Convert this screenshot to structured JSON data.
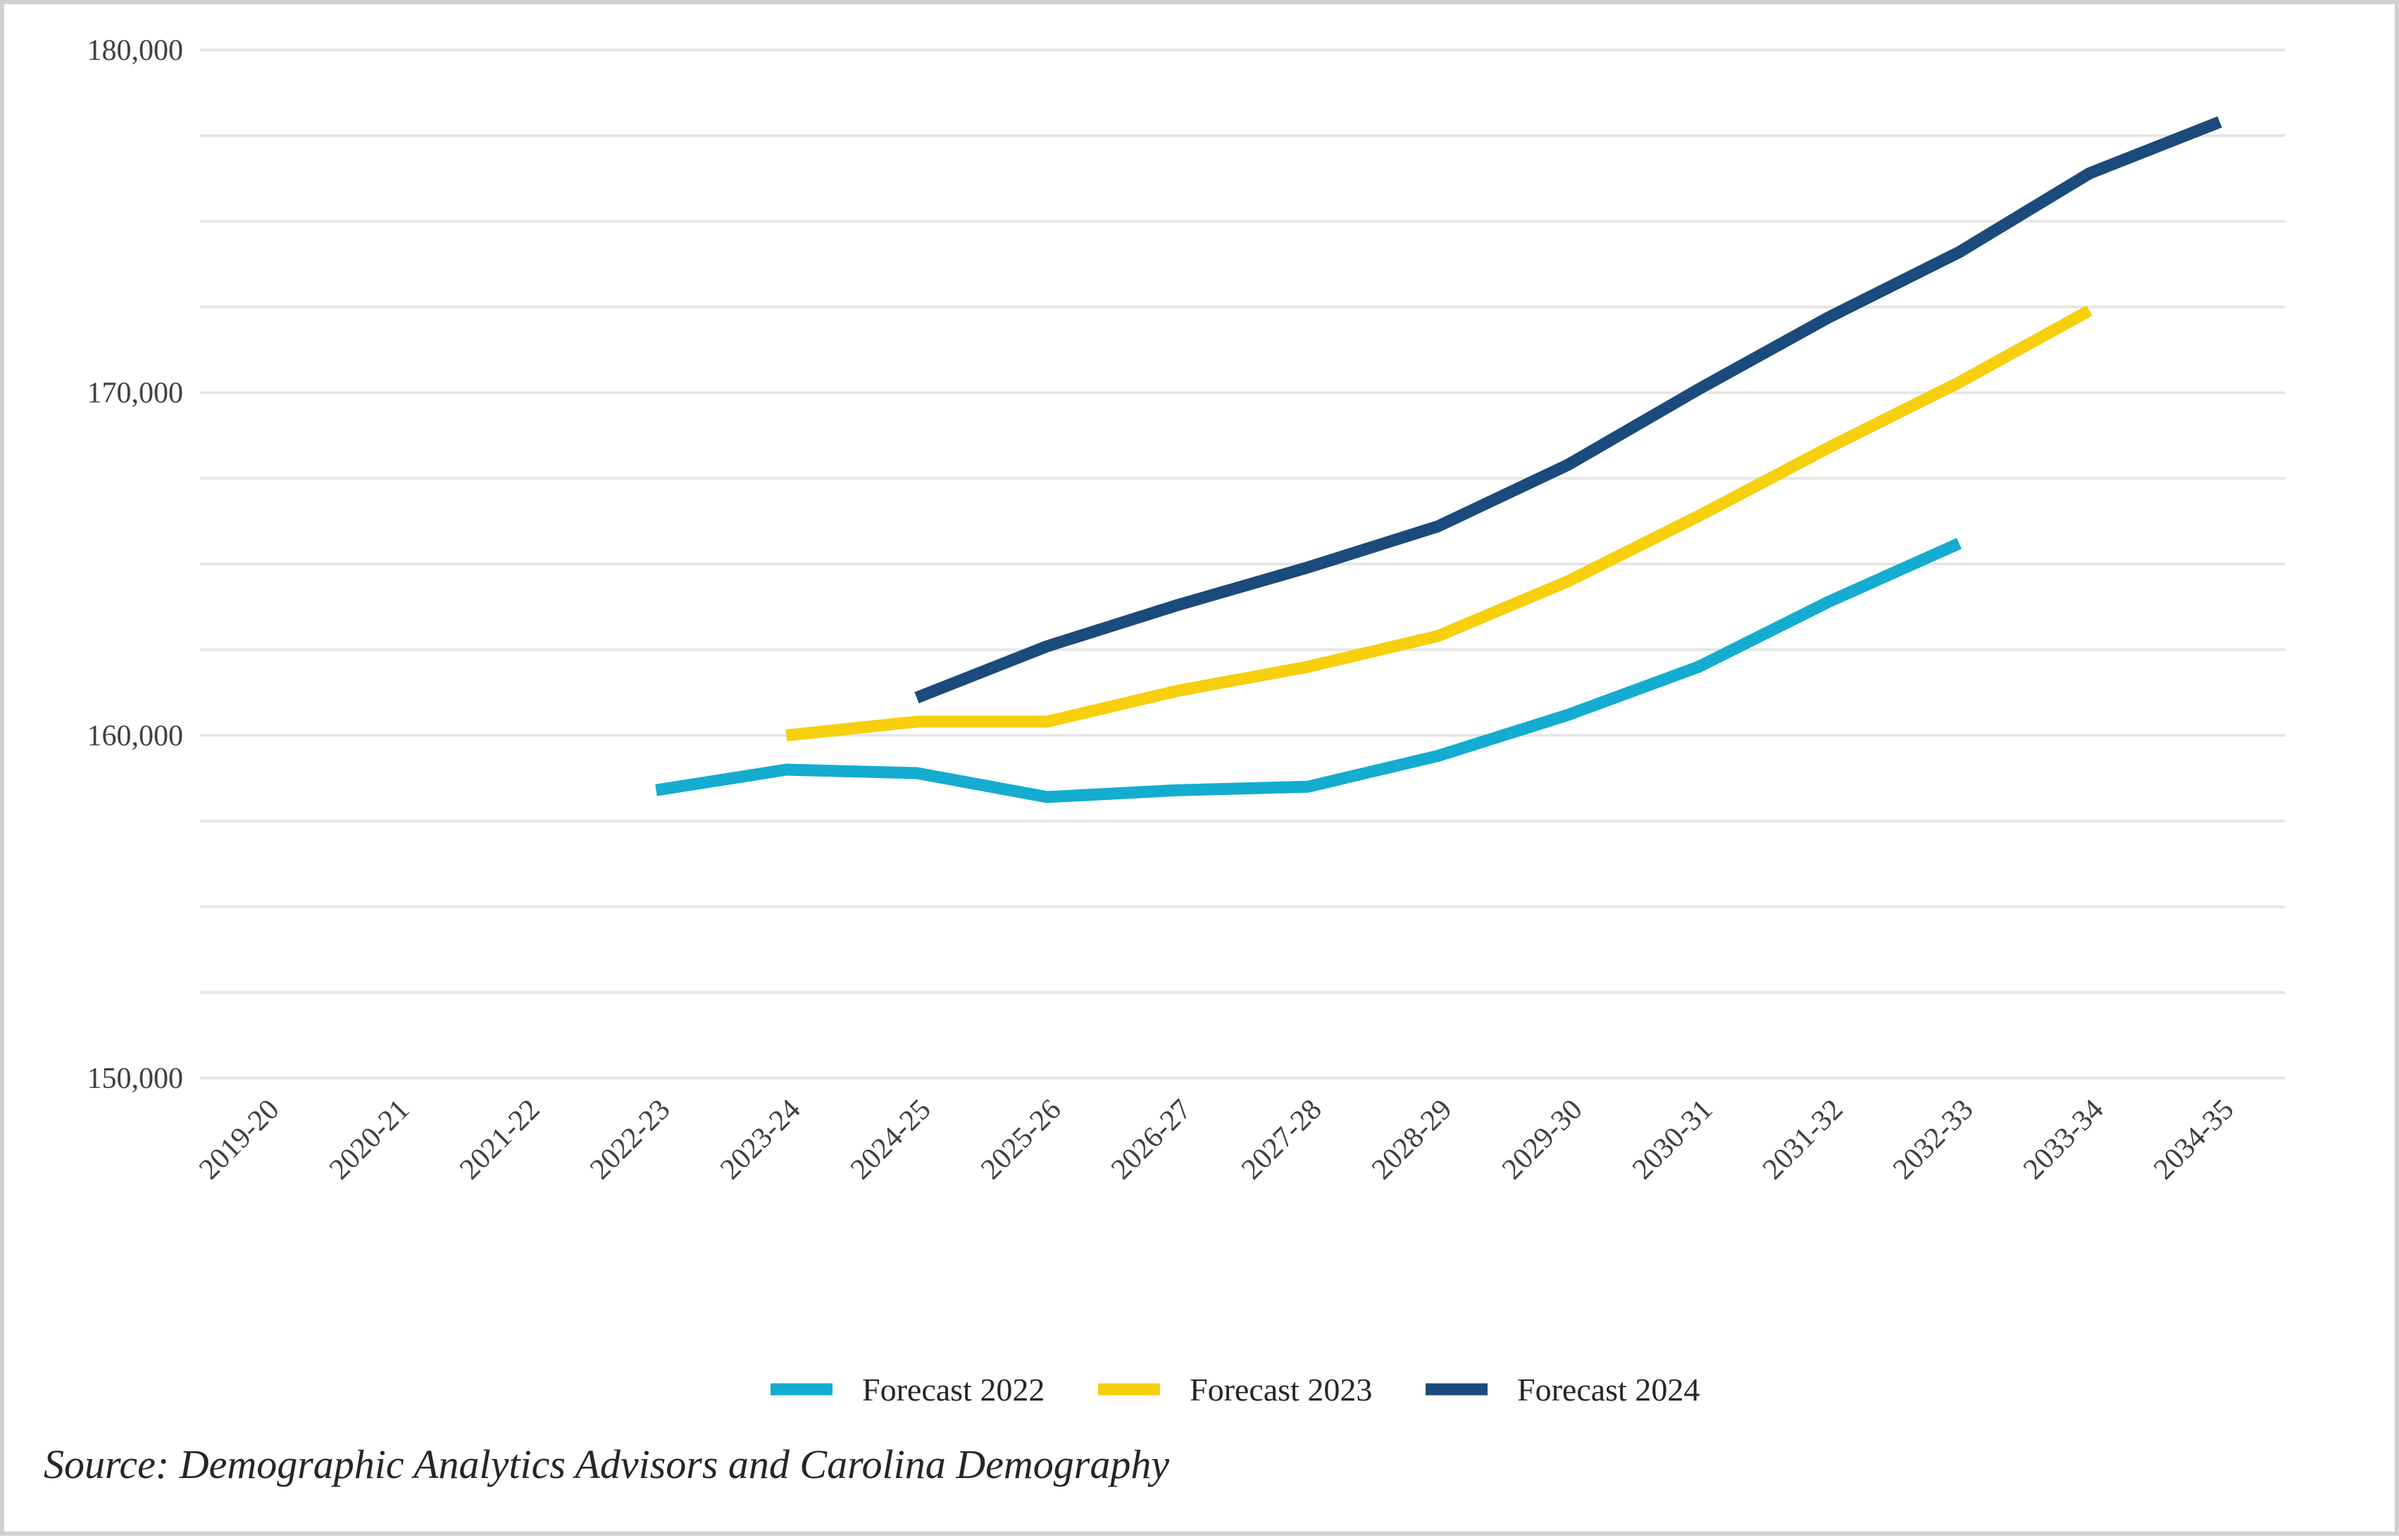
{
  "chart_data": {
    "type": "line",
    "title": "",
    "xlabel": "",
    "ylabel": "",
    "categories": [
      "2019-20",
      "2020-21",
      "2021-22",
      "2022-23",
      "2023-24",
      "2024-25",
      "2025-26",
      "2026-27",
      "2027-28",
      "2028-29",
      "2029-30",
      "2030-31",
      "2031-32",
      "2032-33",
      "2033-34",
      "2034-35"
    ],
    "ylim": [
      150000,
      180000
    ],
    "yticks": [
      150000,
      160000,
      170000,
      180000
    ],
    "ytick_labels": [
      "150,000",
      "160,000",
      "170,000",
      "180,000"
    ],
    "grid": "horizontal",
    "legend_position": "bottom",
    "series": [
      {
        "name": "Forecast 2022",
        "color": "#14acd0",
        "values": [
          null,
          null,
          null,
          158400,
          159000,
          158900,
          158200,
          158400,
          158500,
          159400,
          160600,
          162000,
          163900,
          165600,
          null,
          null
        ]
      },
      {
        "name": "Forecast 2023",
        "color": "#f6cf0d",
        "values": [
          null,
          null,
          null,
          null,
          160000,
          160400,
          160400,
          161300,
          162000,
          162900,
          164500,
          166400,
          168400,
          170300,
          172400,
          null
        ]
      },
      {
        "name": "Forecast 2024",
        "color": "#1b4a7c",
        "values": [
          null,
          null,
          null,
          null,
          null,
          161100,
          162600,
          163800,
          164900,
          166100,
          167900,
          170100,
          172200,
          174100,
          176400,
          177900
        ]
      }
    ]
  },
  "source_text": "Source: Demographic Analytics Advisors and Carolina Demography"
}
